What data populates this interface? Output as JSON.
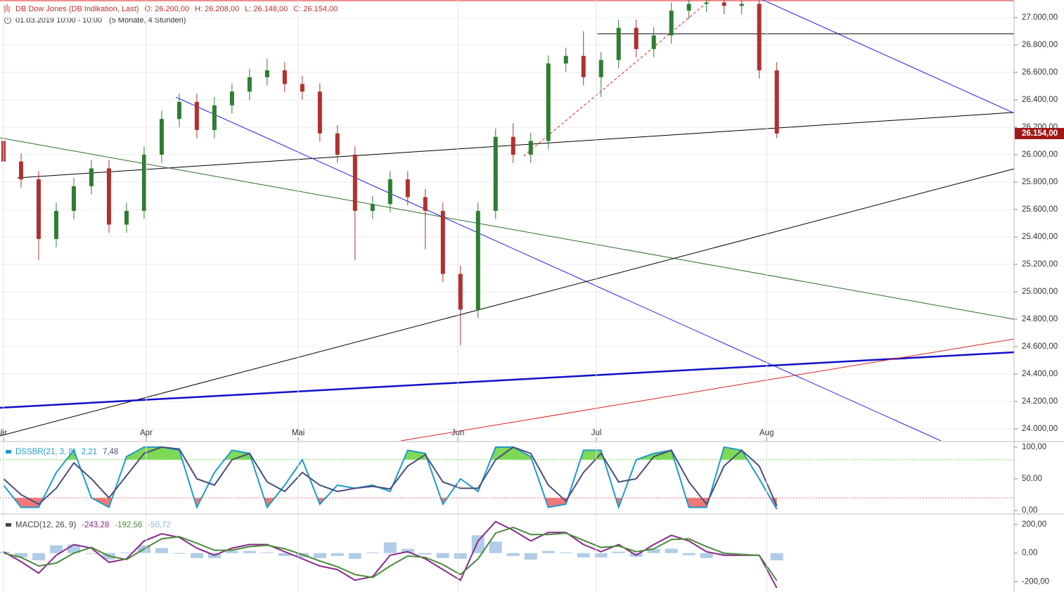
{
  "header": {
    "title": "DB Dow Jones (DB Indikation, Last)",
    "open": "O: 26.200,00",
    "high": "H: 26.208,00",
    "low": "L: 26.148,00",
    "close": "C: 26.154,00",
    "period": "01.03.2019 10:00 - 10:00",
    "range": "(5 Monate, 4 Stunden)"
  },
  "chart_data": [
    {
      "type": "candlestick",
      "xlim": [
        -0.2,
        57.5
      ],
      "xticks": [
        {
          "value": 0,
          "label": "är"
        },
        {
          "value": 8.12,
          "label": "Apr"
        },
        {
          "value": 16.77,
          "label": "Mai"
        },
        {
          "value": 25.85,
          "label": "Jun"
        },
        {
          "value": 33.73,
          "label": "Jul"
        },
        {
          "value": 43.42,
          "label": "Aug"
        }
      ],
      "ylim": [
        23913,
        27128
      ],
      "yticks": [
        {
          "value": 24000,
          "label": "24.000,00"
        },
        {
          "value": 24200,
          "label": "24.200,00"
        },
        {
          "value": 24400,
          "label": "24.400,00"
        },
        {
          "value": 24600,
          "label": "24.600,00"
        },
        {
          "value": 24800,
          "label": "24.800,00"
        },
        {
          "value": 25000,
          "label": "25.000,00"
        },
        {
          "value": 25200,
          "label": "25.200,00"
        },
        {
          "value": 25400,
          "label": "25.400,00"
        },
        {
          "value": 25600,
          "label": "25.600,00"
        },
        {
          "value": 25800,
          "label": "25.800,00"
        },
        {
          "value": 26000,
          "label": "26.000,00"
        },
        {
          "value": 26200,
          "label": "26.200,00"
        },
        {
          "value": 26400,
          "label": "26.400,00"
        },
        {
          "value": 26600,
          "label": "26.600,00"
        },
        {
          "value": 26800,
          "label": "26.800,00"
        },
        {
          "value": 27000,
          "label": "27.000,00"
        }
      ],
      "grid": true,
      "up_color": "#2e7d32",
      "down_color": "#b03030",
      "open": [
        26100,
        25950,
        25820,
        25385,
        25590,
        25770,
        25900,
        25490,
        25590,
        26000,
        26260,
        26385,
        26180,
        26360,
        26460,
        26565,
        26615,
        26515,
        26460,
        26155,
        26000,
        25590,
        25640,
        25820,
        25690,
        25590,
        25130,
        24870,
        25590,
        26130,
        26000,
        26100,
        26665,
        26720,
        26565,
        26690,
        26925,
        26770,
        26870,
        27050,
        27100,
        27110,
        27085,
        27100,
        26615
      ],
      "high": [
        26160,
        26010,
        25880,
        25650,
        25830,
        25960,
        25960,
        25650,
        26060,
        26320,
        26445,
        26445,
        26420,
        26520,
        26625,
        26700,
        26675,
        26575,
        26520,
        26215,
        26060,
        25700,
        25880,
        25880,
        25750,
        25650,
        25190,
        25650,
        26190,
        26230,
        26160,
        26725,
        26780,
        26900,
        26750,
        26985,
        26985,
        26930,
        27110,
        27160,
        27170,
        27170,
        27160,
        27160,
        26675
      ],
      "low": [
        25890,
        25760,
        25230,
        25325,
        25530,
        25710,
        25430,
        25430,
        25530,
        25940,
        26200,
        26120,
        26120,
        26300,
        26400,
        26505,
        26455,
        26400,
        26095,
        25940,
        25230,
        25530,
        25580,
        25630,
        25310,
        25070,
        24610,
        24810,
        25530,
        25940,
        25940,
        26040,
        26605,
        26505,
        26420,
        26630,
        26710,
        26710,
        26810,
        26990,
        27040,
        27025,
        27025,
        26555,
        26120
      ],
      "close": [
        25950,
        25820,
        25385,
        25590,
        25770,
        25900,
        25490,
        25590,
        26000,
        26260,
        26385,
        26180,
        26360,
        26460,
        26565,
        26615,
        26515,
        26460,
        26155,
        26000,
        25590,
        25640,
        25820,
        25690,
        25590,
        25130,
        24870,
        25590,
        26130,
        26000,
        26100,
        26665,
        26720,
        26565,
        26690,
        26925,
        26770,
        26870,
        27050,
        27100,
        27110,
        27085,
        27100,
        26615,
        26154
      ],
      "last_price": {
        "value": 26154,
        "label": "26.154,00"
      },
      "last_color": "#a01818",
      "trendlines": [
        {
          "color": "#e02020",
          "width": 1,
          "style": "solid",
          "x": [
            -0.2,
            57.5
          ],
          "y": [
            27123,
            27123
          ]
        },
        {
          "color": "#000000",
          "width": 1,
          "style": "solid",
          "x": [
            0.8,
            57.5
          ],
          "y": [
            25831,
            26308
          ]
        },
        {
          "color": "#2e6b2e",
          "width": 1,
          "style": "solid",
          "x": [
            -0.2,
            57.5
          ],
          "y": [
            26123,
            24800
          ]
        },
        {
          "color": "#2020e0",
          "width": 1,
          "style": "solid",
          "x": [
            9.8,
            53.34
          ],
          "y": [
            26420,
            23913
          ]
        },
        {
          "color": "#2020e0",
          "width": 1,
          "style": "solid",
          "x": [
            43.22,
            57.5
          ],
          "y": [
            27128,
            26303
          ]
        },
        {
          "color": "#000000",
          "width": 1,
          "style": "solid",
          "x": [
            -0.2,
            57.5
          ],
          "y": [
            23949,
            25897
          ]
        },
        {
          "color": "#1010c8",
          "width": 2.5,
          "style": "solid",
          "x": [
            -0.2,
            57.5
          ],
          "y": [
            24154,
            24559
          ]
        },
        {
          "color": "#e02020",
          "width": 1,
          "style": "solid",
          "x": [
            22.6,
            57.5
          ],
          "y": [
            23913,
            24656
          ]
        },
        {
          "color": "#e02020",
          "width": 1,
          "style": "dashed",
          "x": [
            29.6,
            40.2
          ],
          "y": [
            25990,
            27128
          ]
        },
        {
          "color": "#000000",
          "width": 1,
          "style": "solid",
          "x": [
            33.8,
            57.5
          ],
          "y": [
            26882,
            26882
          ]
        }
      ]
    },
    {
      "type": "oscillator",
      "title": "DSSBR(21, 3, 8)",
      "title_color": "#1e9bc8",
      "ylim": [
        -4.3,
        107.6
      ],
      "yticks": [
        {
          "value": 0,
          "label": "0,00"
        },
        {
          "value": 50,
          "label": "50,00"
        },
        {
          "value": 100,
          "label": "100,00"
        }
      ],
      "upper_band": 80,
      "lower_band": 20,
      "upper_color": "#7ed957",
      "lower_color": "#f07878",
      "series": [
        {
          "color": "#1e9bc8",
          "last_label": "2,21",
          "values": [
            40,
            5,
            5,
            60,
            95,
            20,
            5,
            85,
            100,
            100,
            95,
            5,
            60,
            95,
            90,
            5,
            40,
            80,
            10,
            40,
            35,
            40,
            30,
            95,
            90,
            10,
            50,
            30,
            100,
            100,
            85,
            5,
            10,
            95,
            95,
            5,
            80,
            90,
            95,
            5,
            5,
            100,
            95,
            50,
            2.21
          ]
        },
        {
          "color": "#4a4e7a",
          "last_label": "7,48",
          "values": [
            50,
            25,
            10,
            35,
            75,
            50,
            20,
            55,
            90,
            100,
            97,
            50,
            40,
            80,
            90,
            45,
            30,
            60,
            40,
            30,
            35,
            38,
            34,
            70,
            88,
            45,
            35,
            35,
            80,
            100,
            90,
            40,
            15,
            60,
            90,
            45,
            50,
            85,
            95,
            45,
            10,
            70,
            95,
            70,
            7.48
          ]
        }
      ]
    },
    {
      "type": "macd",
      "title": "MACD(12, 26, 9)",
      "title_color": "#444444",
      "ylim": [
        -272,
        264
      ],
      "yticks": [
        {
          "value": -200,
          "label": "-200,00"
        },
        {
          "value": 0,
          "label": "0,00"
        },
        {
          "value": 200,
          "label": "200,00"
        }
      ],
      "series": [
        {
          "color": "#8a2a8a",
          "last_label": "-243,28",
          "values": [
            10,
            -60,
            -140,
            -15,
            60,
            35,
            -65,
            -40,
            85,
            135,
            110,
            35,
            -15,
            35,
            60,
            60,
            10,
            -40,
            -90,
            -115,
            -190,
            -165,
            -15,
            10,
            -40,
            -115,
            -190,
            85,
            220,
            160,
            85,
            145,
            145,
            60,
            10,
            60,
            -15,
            60,
            125,
            85,
            10,
            -15,
            -15,
            -15,
            -243.28
          ]
        },
        {
          "color": "#4a8a3a",
          "last_label": "-192,56",
          "values": [
            0,
            -30,
            -90,
            -70,
            0,
            40,
            -20,
            -45,
            30,
            100,
            115,
            70,
            20,
            20,
            45,
            55,
            30,
            -10,
            -55,
            -95,
            -150,
            -170,
            -90,
            -20,
            -30,
            -80,
            -150,
            -40,
            140,
            180,
            130,
            130,
            140,
            90,
            40,
            50,
            10,
            30,
            95,
            100,
            45,
            0,
            -10,
            -15,
            -192.56
          ]
        }
      ],
      "histogram": {
        "color": "#8fb6dc",
        "last_label": "-50,72",
        "values": [
          10,
          -30,
          -50,
          55,
          60,
          -5,
          -45,
          5,
          55,
          35,
          -5,
          -35,
          -35,
          15,
          15,
          5,
          -20,
          -30,
          -35,
          -20,
          -40,
          5,
          75,
          30,
          -10,
          -35,
          -40,
          125,
          80,
          -20,
          -45,
          15,
          5,
          -30,
          -30,
          10,
          -25,
          30,
          30,
          -15,
          -35,
          -15,
          -5,
          0,
          -50.72
        ]
      }
    }
  ]
}
